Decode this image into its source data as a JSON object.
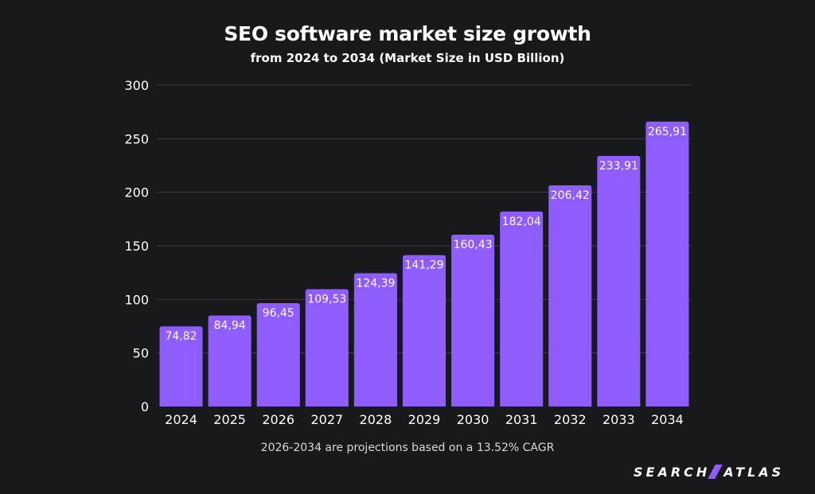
{
  "chart_data": {
    "type": "bar",
    "title": "SEO software market size growth",
    "subtitle": "from 2024 to 2034 (Market Size in USD Billion)",
    "categories": [
      "2024",
      "2025",
      "2026",
      "2027",
      "2028",
      "2029",
      "2030",
      "2031",
      "2032",
      "2033",
      "2034"
    ],
    "values": [
      74.82,
      84.94,
      96.45,
      109.53,
      124.39,
      141.29,
      160.43,
      182.04,
      206.42,
      233.91,
      265.91
    ],
    "value_labels": [
      "74,82",
      "84,94",
      "96,45",
      "109,53",
      "124,39",
      "141,29",
      "160,43",
      "182,04",
      "206,42",
      "233,91",
      "265,91"
    ],
    "ylim": [
      0,
      300
    ],
    "yticks": [
      0,
      50,
      100,
      150,
      200,
      250,
      300
    ],
    "xlabel": "",
    "ylabel": "",
    "grid": true,
    "bar_color": "#8e5cff",
    "grid_color": "#3a3b3e",
    "note": "2026-2034 are projections based on a 13.52% CAGR"
  },
  "brand": {
    "left": "SEARCH",
    "right": "ATLAS",
    "accent_color": "#8e5cff"
  }
}
